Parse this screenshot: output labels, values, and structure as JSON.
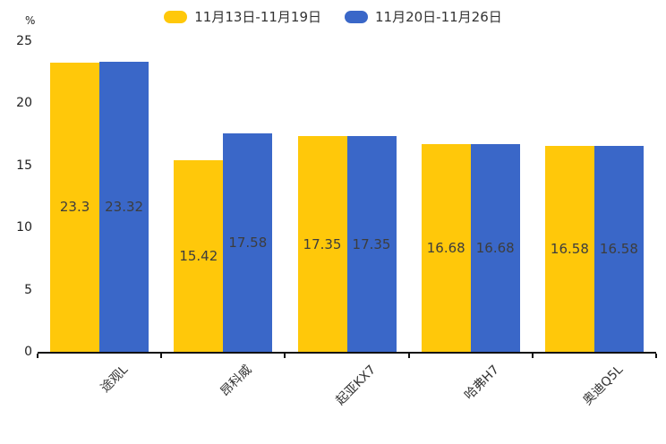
{
  "unit_label": "%",
  "chart_data": {
    "type": "bar",
    "title": "",
    "categories": [
      "途观L",
      "昂科威",
      "起亚KX7",
      "哈弗H7",
      "奥迪Q5L"
    ],
    "series": [
      {
        "name": "11月13日-11月19日",
        "color": "#FFC80A",
        "values": [
          23.3,
          15.42,
          17.35,
          16.68,
          16.58
        ]
      },
      {
        "name": "11月20日-11月26日",
        "color": "#3A67C8",
        "values": [
          23.32,
          17.58,
          17.35,
          16.68,
          16.58
        ]
      }
    ],
    "value_labels": [
      "23.3",
      "23.32",
      "15.42",
      "17.58",
      "17.35",
      "17.35",
      "16.68",
      "16.68",
      "16.58",
      "16.58"
    ],
    "ylabel": "%",
    "xlabel": "",
    "ylim": [
      0,
      25
    ],
    "yticks": [
      0,
      5,
      10,
      15,
      20,
      25
    ],
    "grid": false,
    "legend_position": "top",
    "x_label_rotation": -45
  }
}
